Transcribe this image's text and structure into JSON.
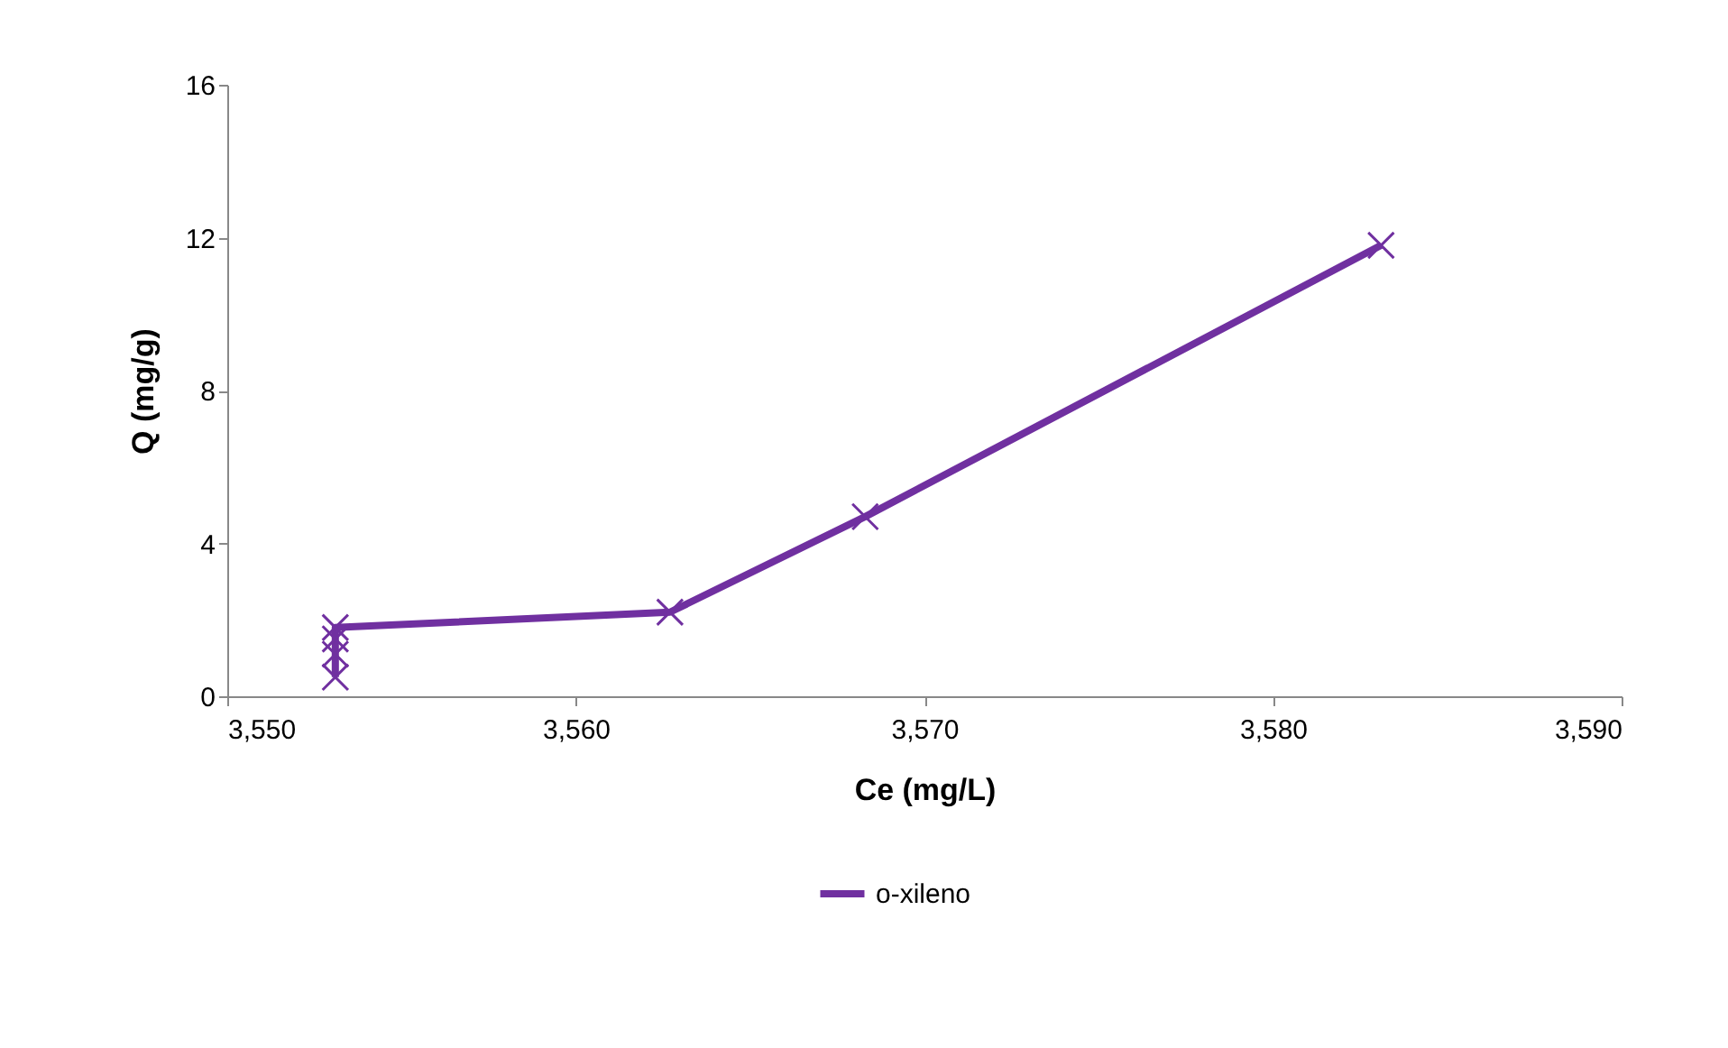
{
  "chart_data": {
    "type": "line",
    "xlabel": "Ce (mg/L)",
    "ylabel": "Q (mg/g)",
    "series": [
      {
        "name": "o-xileno",
        "color": "#7030a0",
        "x": [
          3553.1,
          3553.1,
          3553.1,
          3553.1,
          3562.7,
          3568.3,
          3583.1
        ],
        "values": [
          0.5,
          1.1,
          1.5,
          1.8,
          2.2,
          4.7,
          11.8
        ]
      }
    ],
    "xlim": [
      3550,
      3590
    ],
    "xticks": [
      {
        "value": 3550,
        "label": "3,550"
      },
      {
        "value": 3560,
        "label": "3,560"
      },
      {
        "value": 3570,
        "label": "3,570"
      },
      {
        "value": 3580,
        "label": "3,580"
      },
      {
        "value": 3590,
        "label": "3,590"
      }
    ],
    "ylim": [
      0,
      16
    ],
    "yticks": [
      0,
      4,
      8,
      12,
      16
    ],
    "grid": false,
    "legend": "bottom",
    "marker": "cross",
    "line_style": "solid"
  }
}
